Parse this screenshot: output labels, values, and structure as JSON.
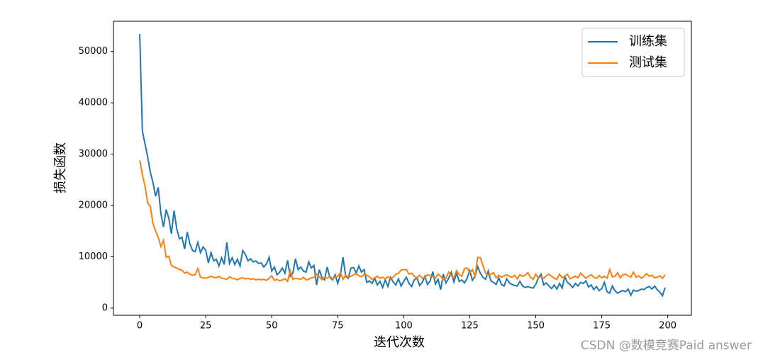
{
  "chart_data": {
    "type": "line",
    "xlabel": "迭代次数",
    "ylabel": "损失函数",
    "watermark": "CSDN @数模竞赛Paid answer",
    "x": [
      0,
      1,
      2,
      3,
      4,
      5,
      6,
      7,
      8,
      9,
      10,
      11,
      12,
      13,
      14,
      15,
      16,
      17,
      18,
      19,
      20,
      21,
      22,
      23,
      24,
      25,
      26,
      27,
      28,
      29,
      30,
      31,
      32,
      33,
      34,
      35,
      36,
      37,
      38,
      39,
      40,
      41,
      42,
      43,
      44,
      45,
      46,
      47,
      48,
      49,
      50,
      51,
      52,
      53,
      54,
      55,
      56,
      57,
      58,
      59,
      60,
      61,
      62,
      63,
      64,
      65,
      66,
      67,
      68,
      69,
      70,
      71,
      72,
      73,
      74,
      75,
      76,
      77,
      78,
      79,
      80,
      81,
      82,
      83,
      84,
      85,
      86,
      87,
      88,
      89,
      90,
      91,
      92,
      93,
      94,
      95,
      96,
      97,
      98,
      99,
      100,
      101,
      102,
      103,
      104,
      105,
      106,
      107,
      108,
      109,
      110,
      111,
      112,
      113,
      114,
      115,
      116,
      117,
      118,
      119,
      120,
      121,
      122,
      123,
      124,
      125,
      126,
      127,
      128,
      129,
      130,
      131,
      132,
      133,
      134,
      135,
      136,
      137,
      138,
      139,
      140,
      141,
      142,
      143,
      144,
      145,
      146,
      147,
      148,
      149,
      150,
      151,
      152,
      153,
      154,
      155,
      156,
      157,
      158,
      159,
      160,
      161,
      162,
      163,
      164,
      165,
      166,
      167,
      168,
      169,
      170,
      171,
      172,
      173,
      174,
      175,
      176,
      177,
      178,
      179,
      180,
      181,
      182,
      183,
      184,
      185,
      186,
      187,
      188,
      189,
      190,
      191,
      192,
      193,
      194,
      195,
      196,
      197,
      198,
      199
    ],
    "series": [
      {
        "name": "训练集",
        "color": "#1f77b4",
        "values": [
          53400,
          34500,
          32000,
          29500,
          26500,
          24500,
          21800,
          23500,
          18500,
          15800,
          19200,
          17500,
          14500,
          19000,
          15500,
          13500,
          13800,
          11500,
          14800,
          12500,
          11200,
          11000,
          12800,
          10800,
          11900,
          11300,
          8800,
          10800,
          9200,
          9500,
          8200,
          9800,
          8500,
          12800,
          8700,
          9800,
          8500,
          9500,
          8200,
          11200,
          10500,
          9200,
          9600,
          9000,
          9200,
          8700,
          8800,
          8000,
          8600,
          9900,
          7200,
          8000,
          6500,
          7000,
          7800,
          6800,
          9300,
          6200,
          6800,
          9600,
          7500,
          8000,
          7200,
          7000,
          9000,
          7800,
          8300,
          4500,
          7500,
          6000,
          5500,
          8000,
          6000,
          5500,
          6500,
          4800,
          6500,
          9900,
          6200,
          5800,
          7800,
          7900,
          6800,
          8200,
          7000,
          7500,
          5000,
          5300,
          4800,
          5800,
          4500,
          5200,
          4000,
          5500,
          4200,
          6000,
          5100,
          4500,
          5700,
          4300,
          5200,
          6000,
          4800,
          4200,
          5500,
          5900,
          4400,
          5000,
          6200,
          4600,
          5300,
          7100,
          4700,
          5600,
          3600,
          6600,
          4900,
          5800,
          7000,
          5100,
          6800,
          5200,
          5500,
          4900,
          5800,
          7300,
          5400,
          6200,
          8100,
          6800,
          6000,
          5600,
          7200,
          5300,
          5000,
          4600,
          5900,
          4600,
          4300,
          5700,
          4900,
          4600,
          4400,
          4300,
          5200,
          4300,
          4000,
          4200,
          4000,
          3900,
          4600,
          5900,
          6600,
          4500,
          4900,
          4300,
          3800,
          4500,
          3700,
          4800,
          3900,
          6100,
          5000,
          4600,
          4000,
          4800,
          4300,
          5000,
          4800,
          5300,
          4100,
          4500,
          3600,
          4200,
          3400,
          3800,
          5000,
          3200,
          2900,
          4300,
          3400,
          2900,
          3200,
          3400,
          3200,
          3700,
          2500,
          3500,
          3300,
          3400,
          3700,
          3600,
          4000,
          4200,
          3700,
          4300,
          3600,
          3100,
          2400,
          4000
        ]
      },
      {
        "name": "测试集",
        "color": "#ff7f0e",
        "values": [
          28800,
          26000,
          23800,
          20500,
          19800,
          16500,
          15000,
          13800,
          12000,
          13200,
          9900,
          10100,
          8300,
          8000,
          7800,
          7500,
          7400,
          6800,
          7000,
          6600,
          6400,
          6500,
          7700,
          6000,
          5900,
          5800,
          6000,
          6200,
          6000,
          5900,
          6200,
          5800,
          5700,
          5600,
          6100,
          5800,
          5700,
          5500,
          5800,
          5900,
          5700,
          5800,
          5600,
          5700,
          5500,
          5600,
          5500,
          5600,
          5400,
          5800,
          6300,
          5400,
          5600,
          5300,
          5500,
          5700,
          5200,
          7300,
          5600,
          5800,
          5700,
          5600,
          6000,
          5500,
          5600,
          5900,
          6000,
          6600,
          6100,
          5500,
          6000,
          5800,
          6200,
          5700,
          6100,
          6200,
          6900,
          5600,
          6400,
          6000,
          6200,
          6500,
          6700,
          6300,
          6100,
          6600,
          6400,
          6100,
          5600,
          5900,
          6200,
          5800,
          6000,
          5700,
          6100,
          5800,
          6000,
          6600,
          6800,
          7400,
          7500,
          7500,
          6600,
          6800,
          6200,
          5900,
          6400,
          5800,
          6000,
          6500,
          6300,
          6100,
          5900,
          6600,
          6200,
          5500,
          5800,
          7000,
          6300,
          5900,
          7300,
          6500,
          6200,
          7700,
          7800,
          6900,
          7500,
          6200,
          9900,
          9800,
          8300,
          6800,
          6400,
          6600,
          6900,
          5900,
          6400,
          6000,
          6300,
          6500,
          6200,
          6000,
          6400,
          5700,
          6500,
          6200,
          6400,
          6900,
          6000,
          5600,
          6600,
          5900,
          6100,
          5800,
          6300,
          6600,
          6200,
          5800,
          5600,
          6600,
          5900,
          6200,
          6600,
          5700,
          6000,
          6200,
          5900,
          6800,
          6300,
          5800,
          6200,
          6500,
          6000,
          5800,
          6300,
          5900,
          6200,
          5800,
          7500,
          6100,
          6200,
          6900,
          5900,
          6500,
          6600,
          6300,
          6000,
          7000,
          6000,
          6300,
          5800,
          6200,
          6700,
          6200,
          6400,
          5900,
          6000,
          6300,
          5800,
          6500
        ]
      }
    ],
    "xlim": [
      -9.95,
      208.95
    ],
    "ylim": [
      -1400,
      55900
    ],
    "xticks": [
      0,
      25,
      50,
      75,
      100,
      125,
      150,
      175,
      200
    ],
    "yticks": [
      0,
      10000,
      20000,
      30000,
      40000,
      50000
    ],
    "legend": "upper right"
  }
}
